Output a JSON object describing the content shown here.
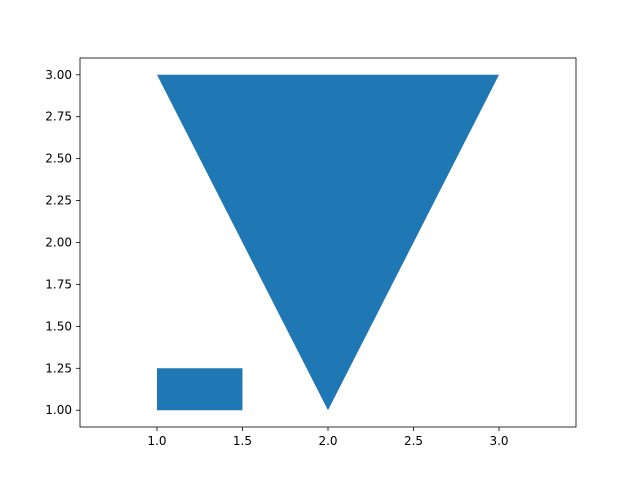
{
  "chart_data": {
    "type": "area",
    "title": "",
    "xlabel": "",
    "ylabel": "",
    "xlim": [
      0.55,
      3.45
    ],
    "ylim": [
      0.9,
      3.1
    ],
    "grid": false,
    "legend": "none",
    "fill_color": "#1f77b4",
    "x_ticks": [
      {
        "value": 1.0,
        "label": "1.0"
      },
      {
        "value": 1.5,
        "label": "1.5"
      },
      {
        "value": 2.0,
        "label": "2.0"
      },
      {
        "value": 2.5,
        "label": "2.5"
      },
      {
        "value": 3.0,
        "label": "3.0"
      }
    ],
    "y_ticks": [
      {
        "value": 1.0,
        "label": "1.00"
      },
      {
        "value": 1.25,
        "label": "1.25"
      },
      {
        "value": 1.5,
        "label": "1.50"
      },
      {
        "value": 1.75,
        "label": "1.75"
      },
      {
        "value": 2.0,
        "label": "2.00"
      },
      {
        "value": 2.25,
        "label": "2.25"
      },
      {
        "value": 2.5,
        "label": "2.50"
      },
      {
        "value": 2.75,
        "label": "2.75"
      },
      {
        "value": 3.0,
        "label": "3.00"
      }
    ],
    "shapes": [
      {
        "kind": "polygon",
        "points": [
          [
            1.0,
            3.0
          ],
          [
            3.0,
            3.0
          ],
          [
            2.0,
            1.0
          ]
        ]
      },
      {
        "kind": "polygon",
        "points": [
          [
            1.0,
            1.0
          ],
          [
            1.5,
            1.0
          ],
          [
            1.5,
            1.25
          ],
          [
            1.0,
            1.25
          ]
        ]
      }
    ]
  }
}
